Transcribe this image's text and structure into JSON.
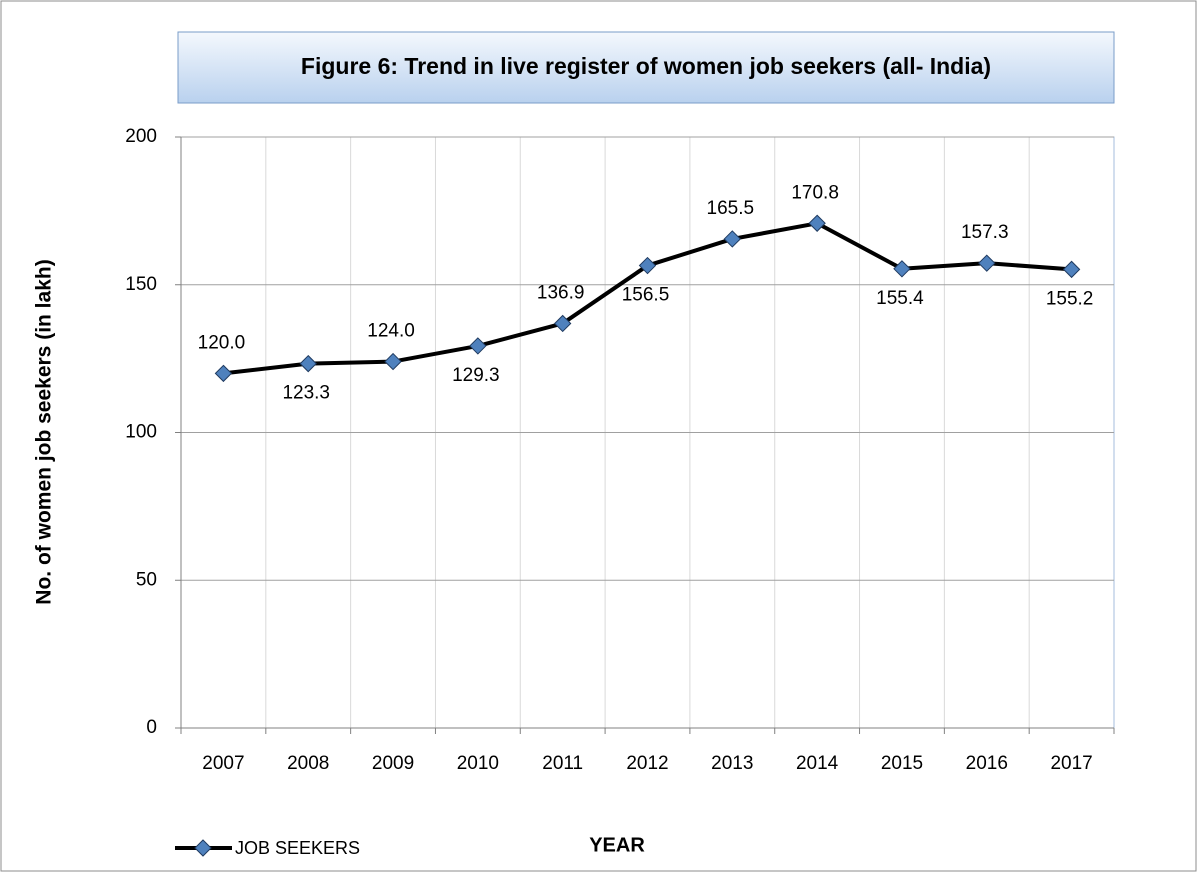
{
  "chart_data": {
    "type": "line",
    "title": "Figure 6: Trend in live register of women job seekers (all- India)",
    "xlabel": "YEAR",
    "ylabel": "No. of women job seekers (in lakh)",
    "categories": [
      "2007",
      "2008",
      "2009",
      "2010",
      "2011",
      "2012",
      "2013",
      "2014",
      "2015",
      "2016",
      "2017"
    ],
    "series": [
      {
        "name": "JOB SEEKERS",
        "color": "#000000",
        "marker_color": "#4f81bd",
        "values": [
          120.0,
          123.3,
          124.0,
          129.3,
          136.9,
          156.5,
          165.5,
          170.8,
          155.4,
          157.3,
          155.2
        ],
        "value_labels": [
          "120.0",
          "123.3",
          "124.0",
          "129.3",
          "136.9",
          "156.5",
          "165.5",
          "170.8",
          "155.4",
          "157.3",
          "155.2"
        ]
      }
    ],
    "ylim": [
      0,
      200
    ],
    "yticks": [
      0,
      50,
      100,
      150,
      200
    ],
    "grid": true,
    "legend": "bottom-left"
  }
}
